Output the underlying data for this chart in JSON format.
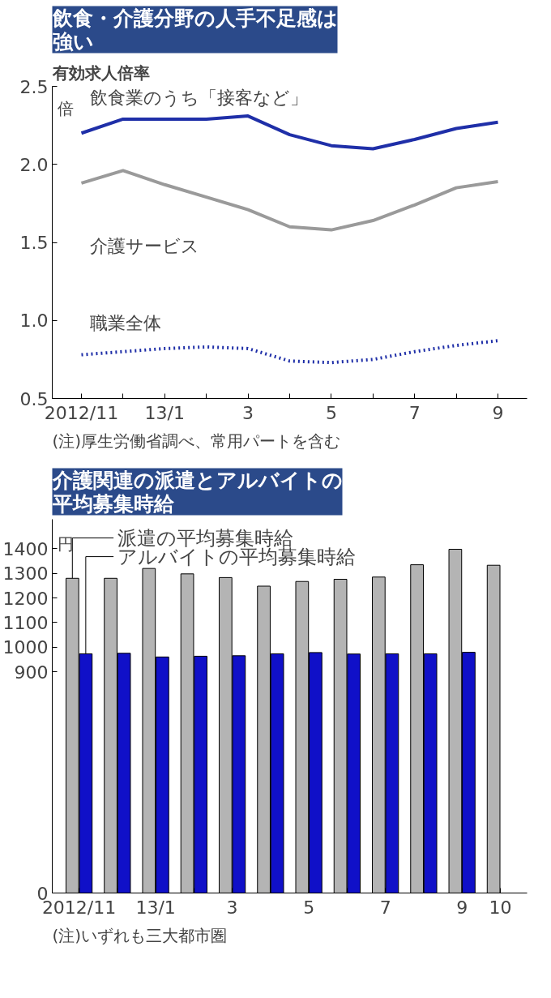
{
  "chart_data": [
    {
      "type": "line",
      "title": "飲食・介護分野の人手不足感は強い",
      "subtitle": "有効求人倍率",
      "ylabel": "倍",
      "categories": [
        "2012/11",
        null,
        "13/1",
        null,
        "3",
        null,
        "5",
        null,
        "7",
        null,
        "9"
      ],
      "series": [
        {
          "name": "飲食業のうち「接客など」",
          "color": "#1f2fa8",
          "line_style": "solid",
          "values": [
            2.2,
            2.29,
            2.29,
            2.29,
            2.31,
            2.19,
            2.12,
            2.1,
            2.16,
            2.23,
            2.27
          ]
        },
        {
          "name": "介護サービス",
          "color": "#9a9a9a",
          "line_style": "solid",
          "values": [
            1.88,
            1.96,
            1.87,
            1.79,
            1.71,
            1.6,
            1.58,
            1.64,
            1.74,
            1.85,
            1.89
          ]
        },
        {
          "name": "職業全体",
          "color": "#1f2fa8",
          "line_style": "dotted",
          "values": [
            0.78,
            0.8,
            0.82,
            0.83,
            0.82,
            0.74,
            0.73,
            0.75,
            0.8,
            0.84,
            0.87
          ]
        }
      ],
      "ylim": [
        0.5,
        2.5
      ],
      "yticks": [
        0.5,
        {
          "value": 1.0,
          "label": "1.0"
        },
        1.5,
        {
          "value": 2.0,
          "label": "2.0"
        },
        2.5
      ],
      "grid": false,
      "legend": false,
      "marker": "none",
      "annotations": [
        "(注)厚生労働省調べ、常用パートを含む"
      ]
    },
    {
      "type": "bar",
      "title": "介護関連の派遣とアルバイトの平均募集時給",
      "ylabel": "円",
      "categories": [
        "2012/11",
        null,
        "13/1",
        null,
        "3",
        null,
        "5",
        null,
        "7",
        null,
        "9",
        "10"
      ],
      "series": [
        {
          "name": "派遣の平均募集時給",
          "color": "#b4b4b4",
          "values": [
            1280,
            1280,
            1320,
            1298,
            1283,
            1248,
            1267,
            1276,
            1285,
            1335,
            1398,
            1333
          ]
        },
        {
          "name": "アルバイトの平均募集時給",
          "color": "#1010c8",
          "values": [
            973,
            975,
            960,
            963,
            965,
            973,
            978,
            972,
            973,
            973,
            979,
            null
          ]
        }
      ],
      "ylim": [
        0,
        1520
      ],
      "yticks": [
        0,
        900,
        1000,
        1100,
        1200,
        1300,
        1400
      ],
      "grid": false,
      "legend": "top left",
      "annotations": [
        "(注)いずれも三大都市圏"
      ]
    }
  ]
}
